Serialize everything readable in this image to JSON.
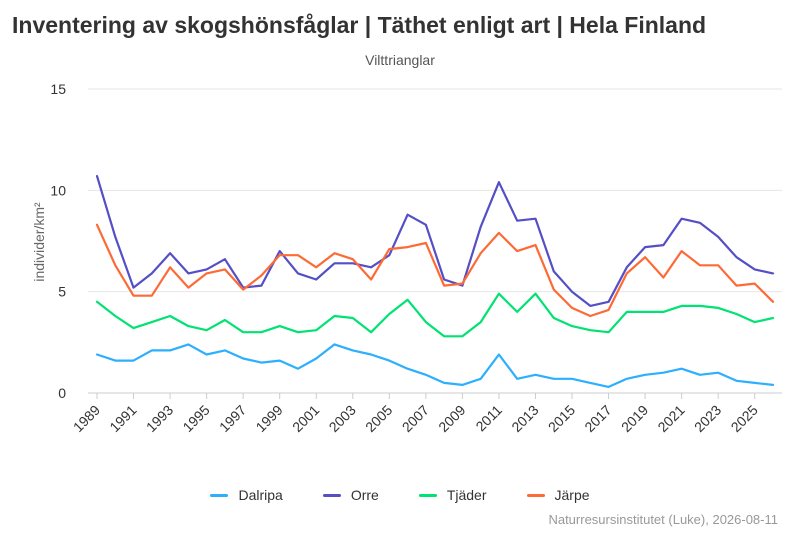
{
  "title": "Inventering av skogshönsfåglar | Täthet enligt art | Hela Finland",
  "subtitle": "Vilttrianglar",
  "credits": "Naturresursinstitutet (Luke), 2026-08-11",
  "chart_data": {
    "type": "line",
    "ylabel": "individer/km²",
    "ylim": [
      0,
      15
    ],
    "yticks": [
      0,
      5,
      10,
      15
    ],
    "xlim": [
      1989,
      2026
    ],
    "xticks": [
      1989,
      1991,
      1993,
      1995,
      1997,
      1999,
      2001,
      2003,
      2005,
      2007,
      2009,
      2011,
      2013,
      2015,
      2017,
      2019,
      2021,
      2023,
      2025
    ],
    "x": [
      1989,
      1990,
      1991,
      1992,
      1993,
      1994,
      1995,
      1996,
      1997,
      1998,
      1999,
      2000,
      2001,
      2002,
      2003,
      2004,
      2005,
      2006,
      2007,
      2008,
      2009,
      2010,
      2011,
      2012,
      2013,
      2014,
      2015,
      2016,
      2017,
      2018,
      2019,
      2020,
      2021,
      2022,
      2023,
      2024,
      2025,
      2026
    ],
    "legend_position": "bottom",
    "series": [
      {
        "name": "Dalripa",
        "color": "#2caffe",
        "values": [
          1.9,
          1.6,
          1.6,
          2.1,
          2.1,
          2.4,
          1.9,
          2.1,
          1.7,
          1.5,
          1.6,
          1.2,
          1.7,
          2.4,
          2.1,
          1.9,
          1.6,
          1.2,
          0.9,
          0.5,
          0.4,
          0.7,
          1.9,
          0.7,
          0.9,
          0.7,
          0.7,
          0.5,
          0.3,
          0.7,
          0.9,
          1.0,
          1.2,
          0.9,
          1.0,
          0.6,
          0.5,
          0.4
        ]
      },
      {
        "name": "Orre",
        "color": "#544fc5",
        "values": [
          10.7,
          7.7,
          5.2,
          5.9,
          6.9,
          5.9,
          6.1,
          6.6,
          5.2,
          5.3,
          7.0,
          5.9,
          5.6,
          6.4,
          6.4,
          6.2,
          6.8,
          8.8,
          8.3,
          5.6,
          5.3,
          8.2,
          10.4,
          8.5,
          8.6,
          6.0,
          5.0,
          4.3,
          4.5,
          6.2,
          7.2,
          7.3,
          8.6,
          8.4,
          7.7,
          6.7,
          6.1,
          5.9
        ]
      },
      {
        "name": "Tjäder",
        "color": "#00e272",
        "values": [
          4.5,
          3.8,
          3.2,
          3.5,
          3.8,
          3.3,
          3.1,
          3.6,
          3.0,
          3.0,
          3.3,
          3.0,
          3.1,
          3.8,
          3.7,
          3.0,
          3.9,
          4.6,
          3.5,
          2.8,
          2.8,
          3.5,
          4.9,
          4.0,
          4.9,
          3.7,
          3.3,
          3.1,
          3.0,
          4.0,
          4.0,
          4.0,
          4.3,
          4.3,
          4.2,
          3.9,
          3.5,
          3.7
        ]
      },
      {
        "name": "Järpe",
        "color": "#fe6a35",
        "values": [
          8.3,
          6.3,
          4.8,
          4.8,
          6.2,
          5.2,
          5.9,
          6.1,
          5.1,
          5.8,
          6.8,
          6.8,
          6.2,
          6.9,
          6.6,
          5.6,
          7.1,
          7.2,
          7.4,
          5.3,
          5.4,
          6.9,
          7.9,
          7.0,
          7.3,
          5.1,
          4.2,
          3.8,
          4.1,
          5.9,
          6.7,
          5.7,
          7.0,
          6.3,
          6.3,
          5.3,
          5.4,
          4.5
        ]
      }
    ]
  }
}
